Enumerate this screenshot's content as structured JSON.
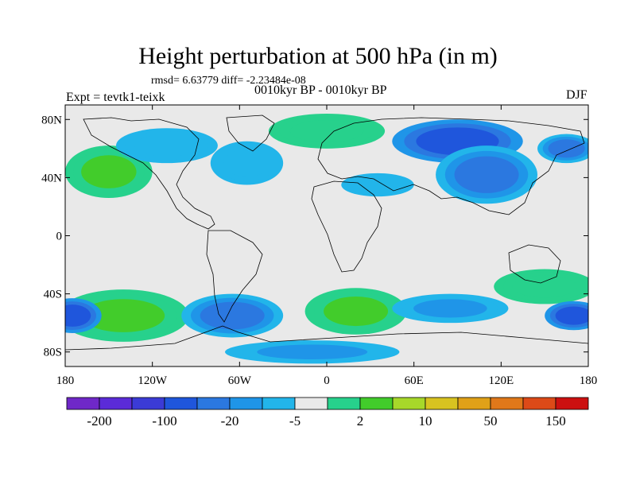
{
  "title": "Height perturbation at 500 hPa (in m)",
  "stats_line": "rmsd= 6.63779 diff= -2.23484e-08",
  "left_label": "Expt = tevtk1-teixk",
  "center_label": "0010kyr BP - 0010kyr BP",
  "right_label": "DJF",
  "map": {
    "projection": "cylindrical equidistant",
    "lat_ticks": [
      {
        "label": "80N",
        "lat": 80
      },
      {
        "label": "40N",
        "lat": 40
      },
      {
        "label": "0",
        "lat": 0
      },
      {
        "label": "40S",
        "lat": -40
      },
      {
        "label": "80S",
        "lat": -80
      }
    ],
    "lon_ticks": [
      {
        "label": "180",
        "lon": -180
      },
      {
        "label": "120W",
        "lon": -120
      },
      {
        "label": "60W",
        "lon": -60
      },
      {
        "label": "0",
        "lon": 0
      },
      {
        "label": "60E",
        "lon": 60
      },
      {
        "label": "120E",
        "lon": 120
      },
      {
        "label": "180",
        "lon": 180
      }
    ],
    "field_blobs": [
      {
        "lon": -150,
        "lat": 44,
        "rlon": 30,
        "rlat": 18,
        "level": 9
      },
      {
        "lon": -110,
        "lat": 62,
        "rlon": 35,
        "rlat": 12,
        "level": 6
      },
      {
        "lon": -55,
        "lat": 50,
        "rlon": 25,
        "rlat": 15,
        "level": 7
      },
      {
        "lon": 0,
        "lat": 72,
        "rlon": 40,
        "rlat": 12,
        "level": 8
      },
      {
        "lon": 35,
        "lat": 35,
        "rlon": 25,
        "rlat": 8,
        "level": 7
      },
      {
        "lon": 90,
        "lat": 65,
        "rlon": 45,
        "rlat": 15,
        "level": 3
      },
      {
        "lon": 110,
        "lat": 42,
        "rlon": 35,
        "rlat": 20,
        "level": 4
      },
      {
        "lon": 165,
        "lat": 60,
        "rlon": 20,
        "rlat": 10,
        "level": 4
      },
      {
        "lon": -140,
        "lat": -55,
        "rlon": 45,
        "rlat": 18,
        "level": 9
      },
      {
        "lon": -175,
        "lat": -55,
        "rlon": 20,
        "rlat": 12,
        "level": 3
      },
      {
        "lon": -65,
        "lat": -55,
        "rlon": 35,
        "rlat": 15,
        "level": 4
      },
      {
        "lon": 20,
        "lat": -52,
        "rlon": 35,
        "rlat": 16,
        "level": 9
      },
      {
        "lon": 85,
        "lat": -50,
        "rlon": 40,
        "rlat": 10,
        "level": 5
      },
      {
        "lon": 150,
        "lat": -35,
        "rlon": 35,
        "rlat": 12,
        "level": 8
      },
      {
        "lon": 170,
        "lat": -55,
        "rlon": 20,
        "rlat": 10,
        "level": 3
      },
      {
        "lon": -10,
        "lat": -80,
        "rlon": 60,
        "rlat": 8,
        "level": 5
      }
    ]
  },
  "colorbar": {
    "colors": [
      "#6f28c8",
      "#5b2bd8",
      "#3b3bd6",
      "#1f56dc",
      "#2b78e0",
      "#1f95e8",
      "#22b5ea",
      "#e9e9e9",
      "#27d18c",
      "#42cc2b",
      "#a7d82a",
      "#d8c320",
      "#e0a118",
      "#e0781a",
      "#dd4a18",
      "#cc1010"
    ],
    "labels": [
      "-200",
      "-100",
      "-20",
      "-5",
      "2",
      "10",
      "50",
      "150"
    ]
  }
}
